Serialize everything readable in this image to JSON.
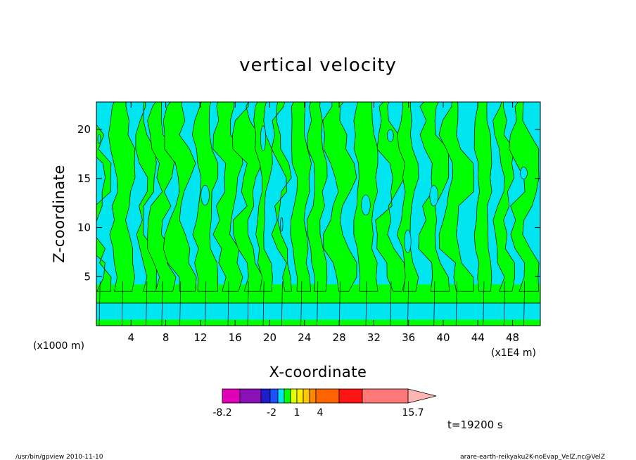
{
  "chart_data": {
    "type": "heatmap",
    "title": "vertical velocity",
    "xlabel": "X-coordinate",
    "ylabel": "Z-coordinate",
    "x_unit": "(x1000 m)",
    "x_unit_right": "(x1E4 m)",
    "x_ticks": [
      "4",
      "8",
      "12",
      "16",
      "20",
      "24",
      "28",
      "32",
      "36",
      "40",
      "44",
      "48"
    ],
    "y_ticks": [
      "5",
      "10",
      "15",
      "20"
    ],
    "xlim": [
      0,
      51.2
    ],
    "ylim": [
      0,
      22.8
    ],
    "colorbar": {
      "colors": [
        "#e000b8",
        "#8a10b8",
        "#1e1ec8",
        "#1e50ff",
        "#00e6f0",
        "#00ff00",
        "#e0ff00",
        "#ffee00",
        "#ffc800",
        "#ff8800",
        "#ff6400",
        "#ff1414",
        "#ff7878",
        "#ffb4b4"
      ],
      "tick_labels": [
        "-8.2",
        "-2",
        "1",
        "4",
        "15.7"
      ]
    },
    "contour_colors": {
      "negative": "#00e6f0",
      "positive": "#00ff00"
    },
    "time_label": "t=19200 s"
  },
  "footer": {
    "left": "/usr/bin/gpview   2010-11-10",
    "right": "arare-earth-reikyaku2K-noEvap_VelZ.nc@VelZ"
  }
}
